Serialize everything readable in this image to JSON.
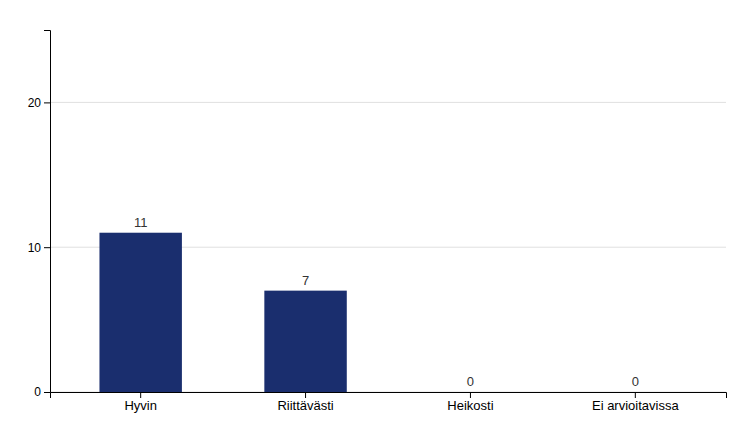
{
  "chart_data": {
    "type": "bar",
    "categories": [
      "Hyvin",
      "Riittävästi",
      "Heikosti",
      "Ei arvioitavissa"
    ],
    "values": [
      11,
      7,
      0,
      0
    ],
    "color": "#1a2e6e",
    "ylim": [
      0,
      25
    ],
    "yticks": [
      0,
      10,
      20
    ],
    "grid": true,
    "data_labels": true
  }
}
